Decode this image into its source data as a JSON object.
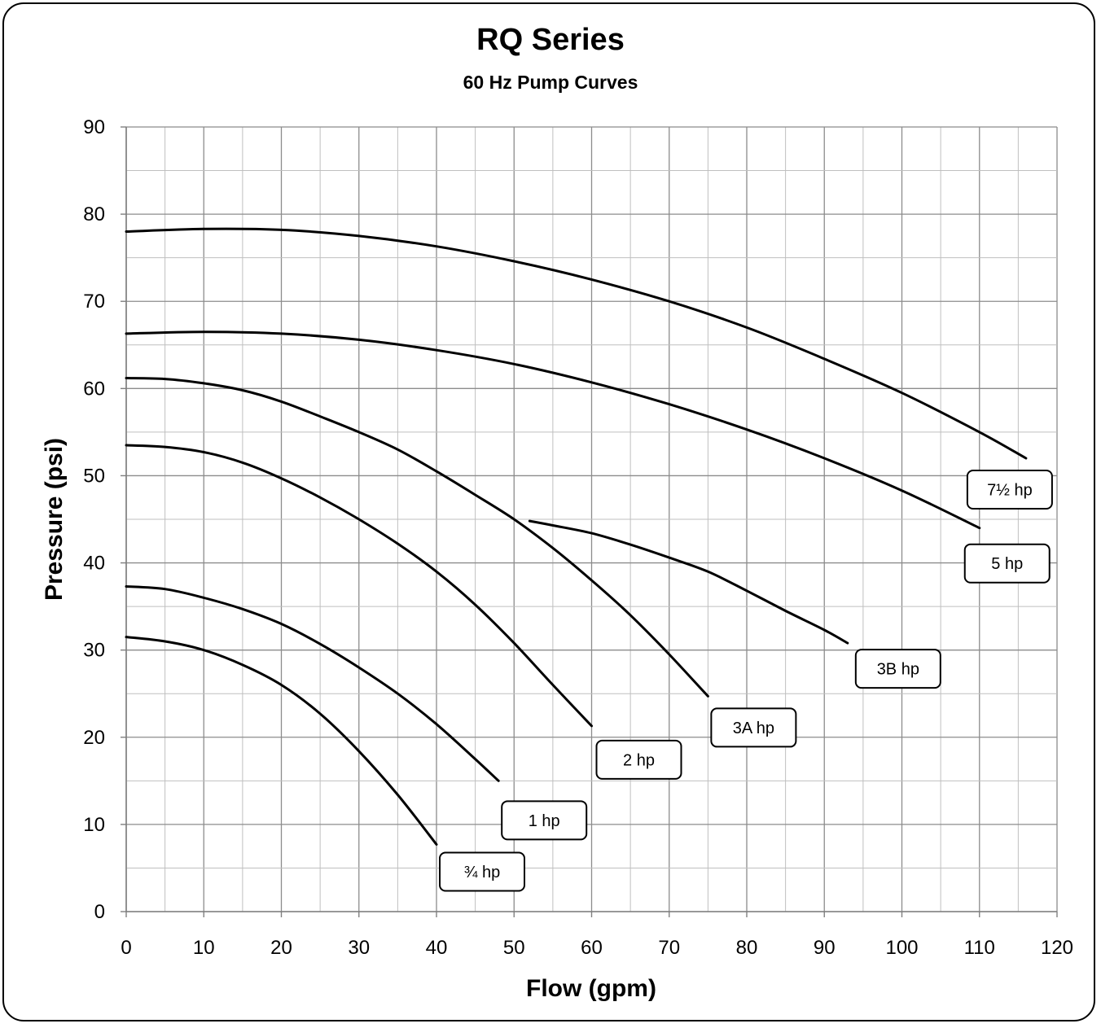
{
  "chart_data": {
    "type": "line",
    "title": "RQ Series",
    "subtitle": "60 Hz Pump Curves",
    "xlabel": "Flow (gpm)",
    "ylabel": "Pressure (psi)",
    "xlim": [
      0,
      120
    ],
    "ylim": [
      0,
      90
    ],
    "xticks": [
      0,
      10,
      20,
      30,
      40,
      50,
      60,
      70,
      80,
      90,
      100,
      110,
      120
    ],
    "yticks": [
      0,
      10,
      20,
      30,
      40,
      50,
      60,
      70,
      80,
      90
    ],
    "grid": true,
    "line_color": "#000000",
    "series": [
      {
        "name": "¾ hp",
        "x": [
          0,
          5,
          10,
          15,
          20,
          25,
          30,
          35,
          40
        ],
        "y": [
          31.5,
          31.0,
          30.0,
          28.3,
          26.0,
          22.7,
          18.4,
          13.4,
          7.7
        ]
      },
      {
        "name": "1 hp",
        "x": [
          0,
          5,
          10,
          15,
          20,
          25,
          30,
          35,
          40,
          45,
          48
        ],
        "y": [
          37.3,
          37.0,
          36.0,
          34.7,
          33.0,
          30.7,
          28.0,
          25.0,
          21.5,
          17.5,
          15.0
        ]
      },
      {
        "name": "2 hp",
        "x": [
          0,
          5,
          10,
          15,
          20,
          25,
          30,
          35,
          40,
          45,
          50,
          55,
          60
        ],
        "y": [
          53.5,
          53.3,
          52.7,
          51.5,
          49.7,
          47.5,
          45.0,
          42.2,
          39.0,
          35.2,
          30.8,
          26.0,
          21.3
        ]
      },
      {
        "name": "3A hp",
        "x": [
          0,
          5,
          10,
          15,
          20,
          25,
          30,
          35,
          40,
          45,
          50,
          55,
          60,
          65,
          70,
          75
        ],
        "y": [
          61.2,
          61.1,
          60.6,
          59.8,
          58.5,
          56.8,
          55.0,
          53.0,
          50.5,
          47.8,
          45.0,
          41.7,
          38.0,
          34.0,
          29.5,
          24.7
        ]
      },
      {
        "name": "3B hp",
        "x": [
          52,
          55,
          60,
          65,
          70,
          75,
          80,
          85,
          90,
          93
        ],
        "y": [
          44.8,
          44.3,
          43.4,
          42.1,
          40.6,
          39.0,
          36.8,
          34.5,
          32.3,
          30.8
        ]
      },
      {
        "name": "5 hp",
        "x": [
          0,
          10,
          20,
          30,
          40,
          50,
          60,
          70,
          80,
          90,
          100,
          110
        ],
        "y": [
          66.3,
          66.5,
          66.3,
          65.6,
          64.4,
          62.8,
          60.7,
          58.2,
          55.3,
          52.0,
          48.3,
          44.0
        ]
      },
      {
        "name": "7½ hp",
        "x": [
          0,
          10,
          20,
          30,
          40,
          50,
          60,
          70,
          80,
          90,
          100,
          110,
          116
        ],
        "y": [
          78.0,
          78.3,
          78.2,
          77.5,
          76.3,
          74.6,
          72.5,
          70.0,
          67.0,
          63.4,
          59.5,
          55.0,
          52.0
        ]
      }
    ]
  }
}
